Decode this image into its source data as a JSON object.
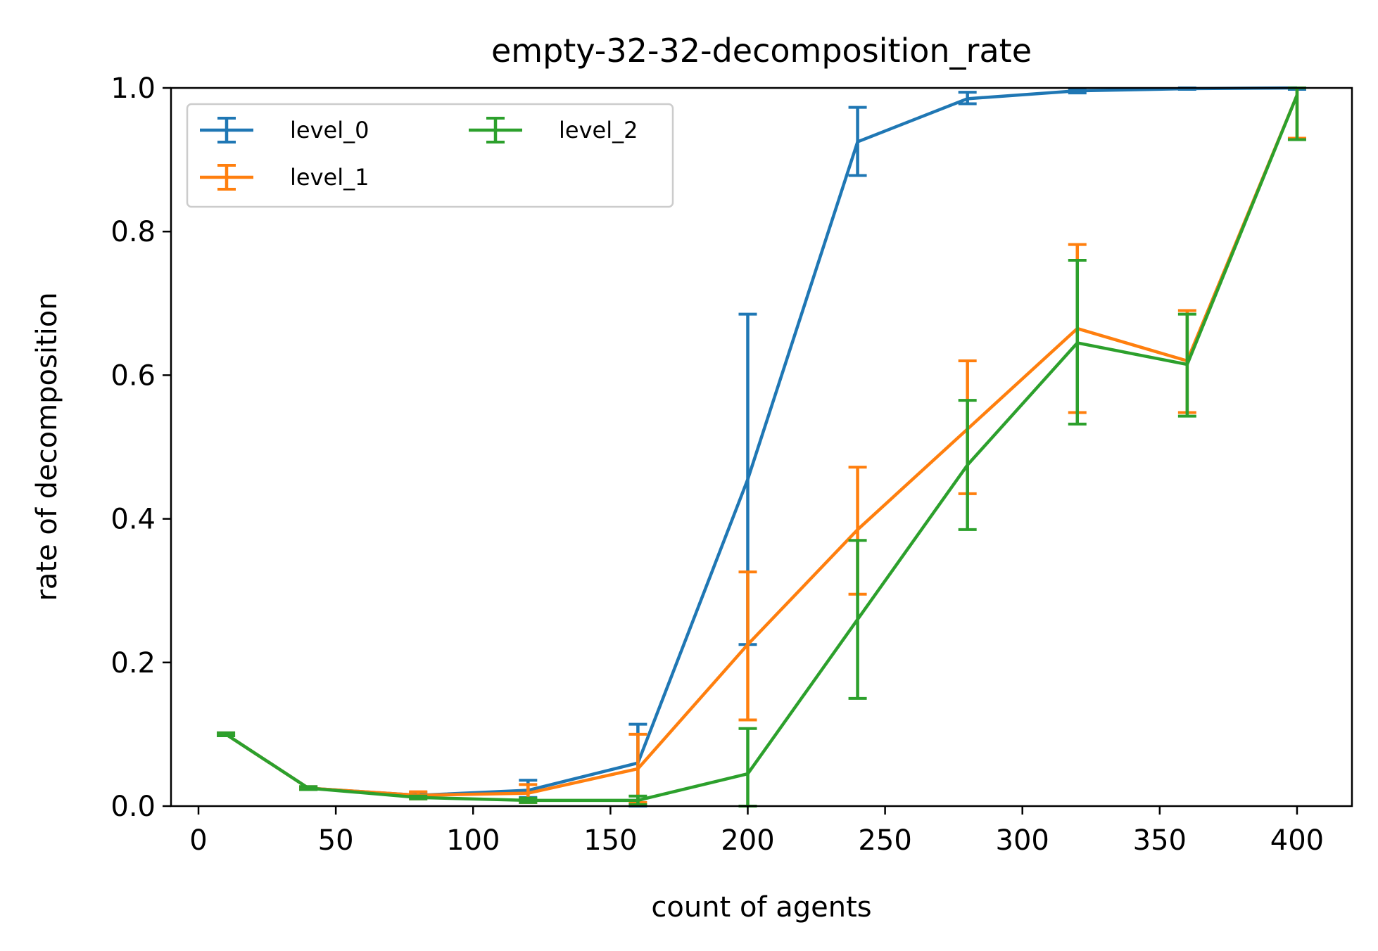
{
  "chart_data": {
    "type": "line",
    "title": "empty-32-32-decomposition_rate",
    "xlabel": "count of agents",
    "ylabel": "rate of decomposition",
    "xlim": [
      -10,
      420
    ],
    "ylim": [
      0.0,
      1.0
    ],
    "xticks": [
      0,
      50,
      100,
      150,
      200,
      250,
      300,
      350,
      400
    ],
    "yticks": [
      0.0,
      0.2,
      0.4,
      0.6,
      0.8,
      1.0
    ],
    "xtick_labels": [
      "0",
      "50",
      "100",
      "150",
      "200",
      "250",
      "300",
      "350",
      "400"
    ],
    "ytick_labels": [
      "0.0",
      "0.2",
      "0.4",
      "0.6",
      "0.8",
      "1.0"
    ],
    "grid": false,
    "legend_position": "top-left",
    "legend_columns": 2,
    "x": [
      10,
      40,
      80,
      120,
      160,
      200,
      240,
      280,
      320,
      360,
      400
    ],
    "series": [
      {
        "name": "level_0",
        "color": "#1f77b4",
        "values": [
          0.1,
          0.025,
          0.015,
          0.022,
          0.06,
          0.455,
          0.925,
          0.985,
          0.996,
          0.999,
          1.0
        ],
        "err_low": [
          0.098,
          0.023,
          0.012,
          0.012,
          0.0,
          0.225,
          0.878,
          0.978,
          0.993,
          0.998,
          0.998
        ],
        "err_high": [
          0.102,
          0.027,
          0.019,
          0.036,
          0.114,
          0.685,
          0.973,
          0.994,
          0.999,
          1.0,
          1.0
        ]
      },
      {
        "name": "level_1",
        "color": "#ff7f0e",
        "values": [
          0.1,
          0.025,
          0.015,
          0.018,
          0.052,
          0.225,
          0.385,
          0.525,
          0.665,
          0.62,
          0.99
        ],
        "err_low": [
          0.098,
          0.023,
          0.01,
          0.005,
          0.005,
          0.12,
          0.295,
          0.435,
          0.548,
          0.548,
          0.93
        ],
        "err_high": [
          0.102,
          0.027,
          0.02,
          0.03,
          0.1,
          0.326,
          0.472,
          0.62,
          0.782,
          0.69,
          1.0
        ]
      },
      {
        "name": "level_2",
        "color": "#2ca02c",
        "values": [
          0.1,
          0.025,
          0.012,
          0.008,
          0.008,
          0.045,
          0.26,
          0.475,
          0.645,
          0.615,
          0.99
        ],
        "err_low": [
          0.098,
          0.023,
          0.01,
          0.005,
          0.002,
          0.0,
          0.15,
          0.385,
          0.532,
          0.543,
          0.928
        ],
        "err_high": [
          0.102,
          0.027,
          0.014,
          0.011,
          0.014,
          0.108,
          0.37,
          0.565,
          0.76,
          0.685,
          1.0
        ]
      }
    ]
  }
}
